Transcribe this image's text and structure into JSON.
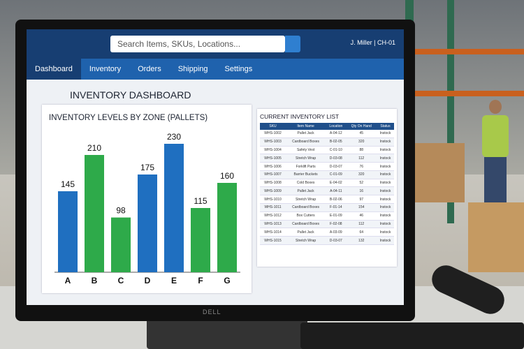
{
  "search_placeholder": "Search Items, SKUs, Locations...",
  "nav": [
    "Dashboard",
    "Inventory",
    "Orders",
    "Shipping",
    "Settings"
  ],
  "user": "J. Miller | CH-01",
  "page_title": "INVENTORY DASHBOARD",
  "chart_data": {
    "type": "bar",
    "title": "INVENTORY LEVELS BY ZONE (PALLETS)",
    "categories": [
      "A",
      "B",
      "C",
      "D",
      "E",
      "F",
      "G"
    ],
    "values": [
      145,
      210,
      98,
      175,
      230,
      115,
      160
    ],
    "colors": [
      "#1f6fc0",
      "#2eaa4a",
      "#2eaa4a",
      "#1f6fc0",
      "#1f6fc0",
      "#2eaa4a",
      "#2eaa4a"
    ]
  },
  "table": {
    "title": "CURRENT INVENTORY LIST",
    "columns": [
      "SKU",
      "Item Name",
      "Location",
      "Qty On Hand",
      "Status"
    ],
    "rows": [
      [
        "WHS-1002",
        "Pallet Jack",
        "A-04-12",
        "45",
        "Instock"
      ],
      [
        "WHS-1003",
        "Cardboard Boxes",
        "B-02-05",
        "320",
        "Instock"
      ],
      [
        "WHS-1004",
        "Safety Vest",
        "C-01-10",
        "88",
        "Instock"
      ],
      [
        "WHS-1005",
        "Stretch Wrap",
        "D-03-08",
        "112",
        "Instock"
      ],
      [
        "WHS-1006",
        "Forklift Parts",
        "D-03-07",
        "76",
        "Instock"
      ],
      [
        "WHS-1007",
        "Barrier Buckets",
        "C-01-09",
        "320",
        "Instock"
      ],
      [
        "WHS-1008",
        "Cold Boxes",
        "E-04-02",
        "52",
        "Instock"
      ],
      [
        "WHS-1009",
        "Pallet Jack",
        "A-04-11",
        "16",
        "Instock"
      ],
      [
        "WHS-1010",
        "Stretch Wrap",
        "B-02-06",
        "97",
        "Instock"
      ],
      [
        "WHS-1011",
        "Cardboard Boxes",
        "F-01-14",
        "154",
        "Instock"
      ],
      [
        "WHS-1012",
        "Box Cutters",
        "E-01-09",
        "46",
        "Instock"
      ],
      [
        "WHS-1013",
        "Cardboard Boxes",
        "F-02-08",
        "112",
        "Instock"
      ],
      [
        "WHS-1014",
        "Pallet Jack",
        "A-03-09",
        "64",
        "Instock"
      ],
      [
        "WHS-1015",
        "Stretch Wrap",
        "D-03-07",
        "132",
        "Instock"
      ]
    ]
  },
  "monitor_brand": "DELL"
}
